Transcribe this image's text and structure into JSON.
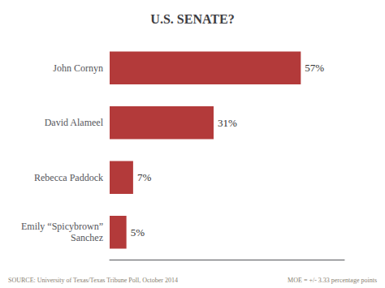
{
  "chart_data": {
    "type": "bar",
    "orientation": "horizontal",
    "title": "U.S. SENATE?",
    "categories": [
      "John Cornyn",
      "David Alameel",
      "Rebecca Paddock",
      "Emily “Spicybrown”\nSanchez"
    ],
    "values": [
      57,
      31,
      7,
      5
    ],
    "value_labels": [
      "57%",
      "31%",
      "7%",
      "5%"
    ],
    "data_labels": true,
    "color": "#b33a3a",
    "xlim": [
      0,
      70
    ],
    "tick_labels": "y",
    "grid": false,
    "annotations": [
      "SOURCE: University of Texas/Texas Tribune Poll, October 2014",
      "MOE = +/- 3.33 percentage points"
    ]
  }
}
